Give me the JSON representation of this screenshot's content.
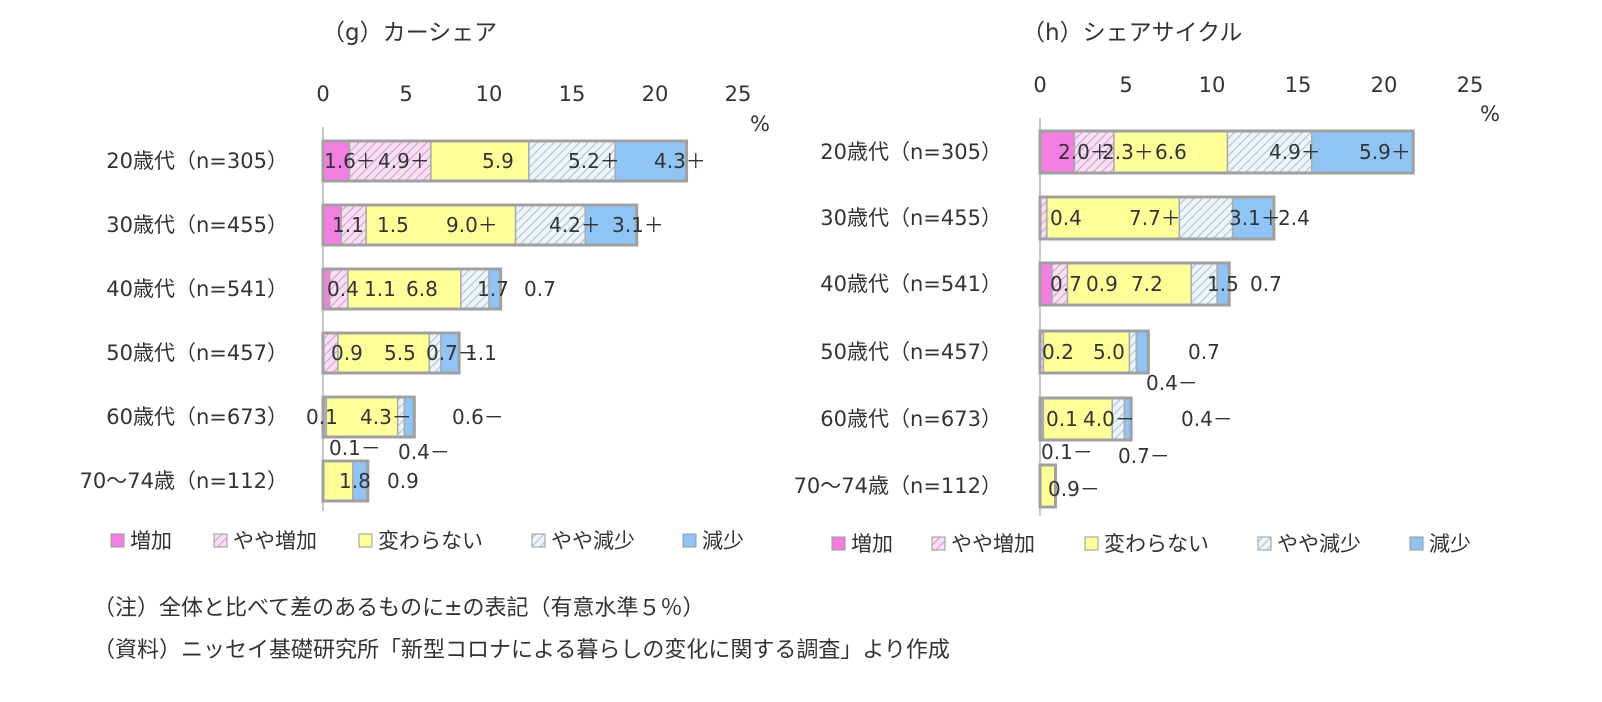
{
  "chart_data": [
    {
      "type": "bar",
      "orientation": "horizontal",
      "stacked": true,
      "title": "（g）カーシェア",
      "unit": "%",
      "xlim": [
        0,
        25
      ],
      "ticks": [
        "0",
        "5",
        "10",
        "15",
        "20",
        "25"
      ],
      "categories": [
        "20歳代（n=305）",
        "30歳代（n=455）",
        "40歳代（n=541）",
        "50歳代（n=457）",
        "60歳代（n=673）",
        "70～74歳（n=112）"
      ],
      "series": [
        {
          "name": "増加",
          "values": [
            1.6,
            1.1,
            0.4,
            0.0,
            0.1,
            0.0
          ],
          "labels": [
            "1.6＋",
            "1.1",
            "0.4",
            "",
            "0.1",
            ""
          ]
        },
        {
          "name": "やや増加",
          "values": [
            4.9,
            1.5,
            1.1,
            0.9,
            0.1,
            0.0
          ],
          "labels": [
            "4.9＋",
            "1.5",
            "1.1",
            "0.9",
            "0.1－",
            ""
          ]
        },
        {
          "name": "変わらない",
          "values": [
            5.9,
            9.0,
            6.8,
            5.5,
            4.3,
            1.8
          ],
          "labels": [
            "5.9",
            "9.0＋",
            "6.8",
            "5.5",
            "4.3－",
            "1.8"
          ]
        },
        {
          "name": "やや減少",
          "values": [
            5.2,
            4.2,
            1.7,
            0.7,
            0.4,
            0.0
          ],
          "labels": [
            "5.2＋",
            "4.2＋",
            "1.7",
            "0.7－",
            "0.4－",
            ""
          ]
        },
        {
          "name": "減少",
          "values": [
            4.3,
            3.1,
            0.7,
            1.1,
            0.6,
            0.9
          ],
          "labels": [
            "4.3＋",
            "3.1＋",
            "0.7",
            "1.1",
            "0.6－",
            "0.9"
          ]
        }
      ]
    },
    {
      "type": "bar",
      "orientation": "horizontal",
      "stacked": true,
      "title": "（h）シェアサイクル",
      "unit": "%",
      "xlim": [
        0,
        25
      ],
      "ticks": [
        "0",
        "5",
        "10",
        "15",
        "20",
        "25"
      ],
      "categories": [
        "20歳代（n=305）",
        "30歳代（n=455）",
        "40歳代（n=541）",
        "50歳代（n=457）",
        "60歳代（n=673）",
        "70～74歳（n=112）"
      ],
      "series": [
        {
          "name": "増加",
          "values": [
            2.0,
            0.0,
            0.7,
            0.0,
            0.1,
            0.0
          ],
          "labels": [
            "2.0＋",
            "",
            "0.7",
            "",
            "0.1",
            ""
          ]
        },
        {
          "name": "やや増加",
          "values": [
            2.3,
            0.4,
            0.9,
            0.2,
            0.1,
            0.0
          ],
          "labels": [
            "2.3＋",
            "0.4",
            "0.9",
            "0.2",
            "0.1－",
            ""
          ]
        },
        {
          "name": "変わらない",
          "values": [
            6.6,
            7.7,
            7.2,
            5.0,
            4.0,
            0.9
          ],
          "labels": [
            "6.6",
            "7.7＋",
            "7.2",
            "5.0",
            "4.0－",
            "0.9－"
          ]
        },
        {
          "name": "やや減少",
          "values": [
            4.9,
            3.1,
            1.5,
            0.4,
            0.7,
            0.0
          ],
          "labels": [
            "4.9＋",
            "3.1＋",
            "1.5",
            "0.4－",
            "0.7－",
            ""
          ]
        },
        {
          "name": "減少",
          "values": [
            5.9,
            2.4,
            0.7,
            0.7,
            0.4,
            0.0
          ],
          "labels": [
            "5.9＋",
            "2.4",
            "0.7",
            "0.7",
            "0.4－",
            ""
          ]
        }
      ]
    }
  ],
  "legend": {
    "items": [
      "増加",
      "やや増加",
      "変わらない",
      "やや減少",
      "減少"
    ],
    "colors": [
      "#f17ee0",
      "#f5cdee",
      "#ffff99",
      "#dce9f2",
      "#8fc4f4"
    ]
  },
  "colors": {
    "bar_border": "#a0a0a0",
    "stripe": "#d6a3cc",
    "stripe_blue": "#9bb8cc"
  },
  "notes": {
    "note1": "（注）全体と比べて差のあるものに±の表記（有意水準５％）",
    "note2": "（資料）ニッセイ基礎研究所「新型コロナによる暮らしの変化に関する調査」より作成"
  }
}
